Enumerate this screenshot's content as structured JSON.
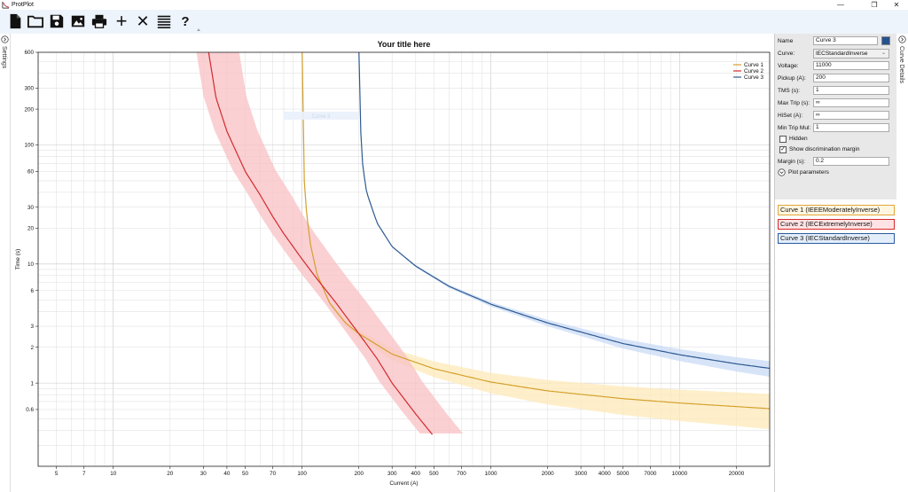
{
  "window": {
    "title": "ProtPlot",
    "minimize": "—",
    "restore": "❐",
    "close": "✕"
  },
  "toolbar": {
    "buttons": [
      "new-file-icon",
      "open-folder-icon",
      "save-icon",
      "image-export-icon",
      "print-icon",
      "add-icon",
      "delete-icon",
      "list-icon",
      "help-icon"
    ],
    "add_glyph": "+",
    "delete_glyph": "✕",
    "help_glyph": "?",
    "more_glyph": "⩡"
  },
  "left_panel": {
    "label": "Settings"
  },
  "right_panel": {
    "label": "Curve Details"
  },
  "details": {
    "name_label": "Name",
    "name_value": "Curve 3",
    "swatch_color": "#26518f",
    "curve_label": "Curve:",
    "curve_value": "IECStandardInverse",
    "voltage_label": "Voltage:",
    "voltage_value": "11000",
    "pickup_label": "Pickup (A):",
    "pickup_value": "200",
    "tms_label": "TMS (s):",
    "tms_value": "1",
    "maxtrip_label": "Max Trip (s):",
    "maxtrip_value": "∞",
    "hiset_label": "HiSet (A):",
    "hiset_value": "∞",
    "mintrip_label": "Min Trip Mul:",
    "mintrip_value": "1",
    "hidden_label": "Hidden",
    "hidden_checked": "",
    "discrim_label": "Show discrimination margin",
    "discrim_checked": "✓",
    "margin_label": "Margin (s):",
    "margin_value": "0.2",
    "plot_params_label": "Plot parameters"
  },
  "curve_list": [
    {
      "label": "Curve 1 (IEEEModeratelyInverse)",
      "border": "#e0a63a",
      "bg": "#fff6e0"
    },
    {
      "label": "Curve 2 (IECExtremelyInverse)",
      "border": "#d7272a",
      "bg": "#ffe3e4"
    },
    {
      "label": "Curve 3 (IECStandardInverse)",
      "border": "#2b5b9e",
      "bg": "#e4eefb"
    }
  ],
  "chart_data": {
    "type": "line",
    "title": "Your title here",
    "xlabel": "Current (A)",
    "ylabel": "Time (s)",
    "x_scale": "log",
    "y_scale": "log",
    "xlim": [
      4,
      30000
    ],
    "ylim": [
      0.2,
      600
    ],
    "grid": true,
    "legend_position": "top-right",
    "x_ticks": [
      5,
      7,
      10,
      20,
      30,
      40,
      50,
      70,
      100,
      200,
      300,
      400,
      500,
      700,
      1000,
      2000,
      3000,
      4000,
      5000,
      7000,
      10000,
      20000
    ],
    "x_tick_labels": [
      "5",
      "7",
      "10",
      "20",
      "30",
      "40",
      "50",
      "70",
      "100",
      "200",
      "300",
      "400",
      "500",
      "700",
      "1000",
      "2000",
      "3000",
      "4000",
      "5000",
      "7000",
      "10000",
      "20000"
    ],
    "y_ticks": [
      0.6,
      1,
      2,
      3,
      6,
      10,
      20,
      30,
      60,
      100,
      200,
      300,
      600
    ],
    "y_tick_labels": [
      "0.6",
      "1",
      "2",
      "3",
      "6",
      "10",
      "20",
      "30",
      "60",
      "100",
      "200",
      "300",
      "600"
    ],
    "series": [
      {
        "name": "Curve 1",
        "color": "#d4a02c",
        "band": "#fde9b8",
        "points": [
          [
            100.2,
            600
          ],
          [
            101,
            120
          ],
          [
            102,
            60
          ],
          [
            105,
            30
          ],
          [
            110,
            15.4
          ],
          [
            120,
            8.2
          ],
          [
            140,
            4.7
          ],
          [
            170,
            3.2
          ],
          [
            200,
            2.6
          ],
          [
            300,
            1.75
          ],
          [
            500,
            1.32
          ],
          [
            1000,
            1.02
          ],
          [
            2000,
            0.86
          ],
          [
            5000,
            0.74
          ],
          [
            10000,
            0.68
          ],
          [
            30000,
            0.61
          ]
        ]
      },
      {
        "name": "Curve 2",
        "color": "#d42a2c",
        "band": "#f8c0c4",
        "points": [
          [
            32,
            600
          ],
          [
            35,
            250
          ],
          [
            40,
            130
          ],
          [
            50,
            60
          ],
          [
            60,
            38
          ],
          [
            70,
            25
          ],
          [
            80,
            18
          ],
          [
            100,
            11
          ],
          [
            120,
            7.5
          ],
          [
            150,
            4.8
          ],
          [
            200,
            2.6
          ],
          [
            250,
            1.6
          ],
          [
            300,
            1.0
          ],
          [
            400,
            0.55
          ],
          [
            490,
            0.37
          ]
        ]
      },
      {
        "name": "Curve 3",
        "color": "#2e5a92",
        "band": "#c9dbf5",
        "points": [
          [
            200.2,
            600
          ],
          [
            202,
            300
          ],
          [
            205,
            120
          ],
          [
            210,
            65
          ],
          [
            220,
            40
          ],
          [
            250,
            22
          ],
          [
            300,
            14
          ],
          [
            400,
            9.6
          ],
          [
            600,
            6.5
          ],
          [
            1000,
            4.6
          ],
          [
            2000,
            3.2
          ],
          [
            5000,
            2.15
          ],
          [
            10000,
            1.73
          ],
          [
            20000,
            1.45
          ],
          [
            30000,
            1.33
          ]
        ]
      }
    ],
    "faint_label": "Curve 3"
  }
}
